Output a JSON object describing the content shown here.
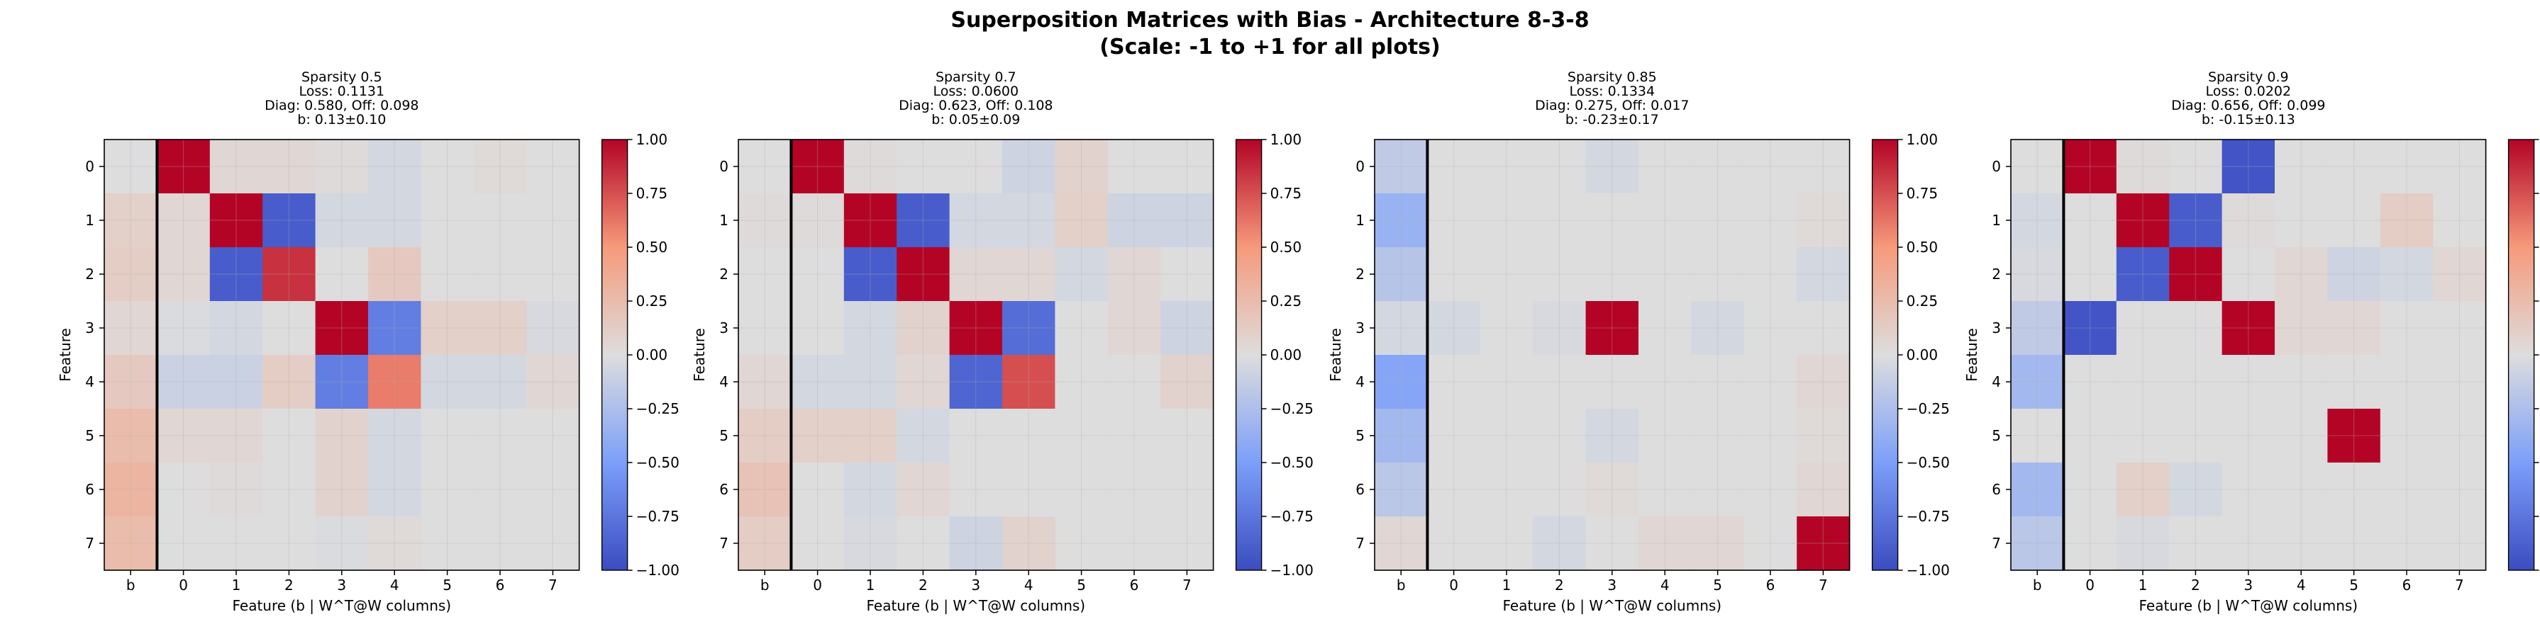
{
  "figure": {
    "title_line1": "Superposition Matrices with Bias - Architecture 8-3-8",
    "title_line2": "(Scale: -1 to +1 for all plots)"
  },
  "colormap": "coolwarm",
  "colors": {
    "min": "#3b4cc0",
    "mid": "#dddddd",
    "max": "#b40426",
    "divider": "#000000"
  },
  "chart_data": [
    {
      "type": "heatmap",
      "title": [
        "Sparsity 0.5",
        "Loss: 0.1131",
        "Diag: 0.580, Off: 0.098",
        "b: 0.13±0.10"
      ],
      "xlabel": "Feature (b | W^T@W columns)",
      "ylabel": "Feature",
      "x_tick_labels": [
        "b",
        "0",
        "1",
        "2",
        "3",
        "4",
        "5",
        "6",
        "7"
      ],
      "y_tick_labels": [
        "0",
        "1",
        "2",
        "3",
        "4",
        "5",
        "6",
        "7"
      ],
      "colorbar_ticks": [
        "1.00",
        "0.75",
        "0.50",
        "0.25",
        "0.00",
        "−0.25",
        "−0.50",
        "−0.75",
        "−1.00"
      ],
      "vmin": -1,
      "vmax": 1,
      "values": [
        [
          0.0,
          1.0,
          0.05,
          0.05,
          0.02,
          -0.05,
          0.0,
          0.03,
          0.0
        ],
        [
          0.1,
          0.05,
          1.0,
          -0.9,
          -0.05,
          -0.05,
          0.0,
          0.0,
          0.0
        ],
        [
          0.12,
          0.05,
          -0.9,
          0.85,
          0.0,
          0.15,
          0.0,
          0.0,
          0.0
        ],
        [
          0.05,
          -0.02,
          -0.05,
          0.0,
          1.0,
          -0.7,
          0.1,
          0.1,
          -0.03
        ],
        [
          0.15,
          -0.1,
          -0.1,
          0.12,
          -0.7,
          0.6,
          -0.05,
          -0.05,
          0.05
        ],
        [
          0.25,
          0.05,
          0.05,
          0.0,
          0.08,
          -0.05,
          0.0,
          0.0,
          0.0
        ],
        [
          0.3,
          0.0,
          0.02,
          0.0,
          0.08,
          -0.05,
          0.0,
          0.0,
          0.0
        ],
        [
          0.25,
          0.0,
          0.0,
          0.0,
          -0.02,
          0.03,
          0.0,
          0.0,
          0.0
        ]
      ]
    },
    {
      "type": "heatmap",
      "title": [
        "Sparsity 0.7",
        "Loss: 0.0600",
        "Diag: 0.623, Off: 0.108",
        "b: 0.05±0.09"
      ],
      "xlabel": "Feature (b | W^T@W columns)",
      "ylabel": "Feature",
      "x_tick_labels": [
        "b",
        "0",
        "1",
        "2",
        "3",
        "4",
        "5",
        "6",
        "7"
      ],
      "y_tick_labels": [
        "0",
        "1",
        "2",
        "3",
        "4",
        "5",
        "6",
        "7"
      ],
      "colorbar_ticks": [
        "1.00",
        "0.75",
        "0.50",
        "0.25",
        "0.00",
        "−0.25",
        "−0.50",
        "−0.75",
        "−1.00"
      ],
      "vmin": -1,
      "vmax": 1,
      "values": [
        [
          0.0,
          1.0,
          0.02,
          0.0,
          0.0,
          -0.08,
          0.08,
          0.0,
          0.0
        ],
        [
          0.02,
          0.02,
          1.0,
          -0.9,
          -0.05,
          -0.05,
          0.1,
          -0.08,
          -0.08
        ],
        [
          0.0,
          0.0,
          -0.9,
          1.0,
          0.05,
          0.05,
          -0.05,
          0.05,
          0.0
        ],
        [
          0.0,
          0.0,
          -0.05,
          0.08,
          1.0,
          -0.8,
          0.0,
          0.05,
          -0.08
        ],
        [
          0.05,
          -0.05,
          -0.05,
          0.05,
          -0.85,
          0.75,
          0.0,
          0.0,
          0.08
        ],
        [
          0.12,
          0.1,
          0.1,
          -0.05,
          0.0,
          0.0,
          0.0,
          0.0,
          0.0
        ],
        [
          0.2,
          0.0,
          -0.05,
          0.05,
          0.0,
          0.0,
          0.0,
          0.0,
          0.0
        ],
        [
          0.12,
          0.0,
          -0.03,
          0.0,
          -0.08,
          0.08,
          0.0,
          0.0,
          0.0
        ]
      ]
    },
    {
      "type": "heatmap",
      "title": [
        "Sparsity 0.85",
        "Loss: 0.1334",
        "Diag: 0.275, Off: 0.017",
        "b: -0.23±0.17"
      ],
      "xlabel": "Feature (b | W^T@W columns)",
      "ylabel": "Feature",
      "x_tick_labels": [
        "b",
        "0",
        "1",
        "2",
        "3",
        "4",
        "5",
        "6",
        "7"
      ],
      "y_tick_labels": [
        "0",
        "1",
        "2",
        "3",
        "4",
        "5",
        "6",
        "7"
      ],
      "colorbar_ticks": [
        "1.00",
        "0.75",
        "0.50",
        "0.25",
        "0.00",
        "−0.25",
        "−0.50",
        "−0.75",
        "−1.00"
      ],
      "vmin": -1,
      "vmax": 1,
      "values": [
        [
          -0.15,
          0.0,
          0.0,
          0.0,
          -0.05,
          0.0,
          0.0,
          0.0,
          0.0
        ],
        [
          -0.35,
          0.0,
          0.0,
          0.0,
          0.0,
          0.0,
          0.0,
          0.0,
          0.03
        ],
        [
          -0.2,
          0.0,
          0.0,
          0.0,
          0.0,
          0.0,
          0.0,
          0.0,
          -0.05
        ],
        [
          -0.05,
          -0.05,
          0.0,
          -0.03,
          1.0,
          0.0,
          -0.05,
          0.0,
          0.0
        ],
        [
          -0.45,
          0.0,
          0.0,
          0.0,
          0.0,
          0.0,
          0.0,
          0.0,
          0.05
        ],
        [
          -0.3,
          0.0,
          0.0,
          0.0,
          -0.05,
          0.0,
          0.0,
          0.0,
          0.03
        ],
        [
          -0.18,
          0.0,
          0.0,
          0.0,
          0.03,
          0.0,
          0.0,
          0.0,
          0.05
        ],
        [
          0.05,
          0.0,
          0.0,
          -0.05,
          0.0,
          0.05,
          0.05,
          0.0,
          1.0
        ]
      ]
    },
    {
      "type": "heatmap",
      "title": [
        "Sparsity 0.9",
        "Loss: 0.0202",
        "Diag: 0.656, Off: 0.099",
        "b: -0.15±0.13"
      ],
      "xlabel": "Feature (b | W^T@W columns)",
      "ylabel": "Feature",
      "x_tick_labels": [
        "b",
        "0",
        "1",
        "2",
        "3",
        "4",
        "5",
        "6",
        "7"
      ],
      "y_tick_labels": [
        "0",
        "1",
        "2",
        "3",
        "4",
        "5",
        "6",
        "7"
      ],
      "colorbar_ticks": [
        "1.00",
        "0.75",
        "0.50",
        "0.25",
        "0.00",
        "−0.25",
        "−0.50",
        "−0.75",
        "−1.00"
      ],
      "vmin": -1,
      "vmax": 1,
      "values": [
        [
          0.0,
          1.0,
          0.02,
          0.0,
          -0.95,
          0.0,
          0.0,
          0.0,
          0.0
        ],
        [
          -0.05,
          0.0,
          1.0,
          -0.9,
          0.02,
          0.0,
          0.0,
          0.12,
          0.0
        ],
        [
          -0.03,
          0.0,
          -0.9,
          1.0,
          0.0,
          0.05,
          -0.08,
          -0.05,
          0.05
        ],
        [
          -0.15,
          -0.95,
          0.0,
          0.0,
          1.0,
          0.05,
          0.05,
          0.0,
          0.0
        ],
        [
          -0.3,
          0.0,
          0.0,
          0.0,
          0.0,
          0.0,
          0.0,
          0.0,
          0.0
        ],
        [
          0.0,
          0.0,
          0.0,
          0.0,
          0.0,
          0.0,
          1.0,
          0.0,
          0.0
        ],
        [
          -0.3,
          0.0,
          0.1,
          -0.05,
          0.0,
          0.0,
          0.0,
          0.0,
          0.0
        ],
        [
          -0.18,
          0.0,
          -0.03,
          0.0,
          0.0,
          0.0,
          0.0,
          0.0,
          0.0
        ]
      ]
    }
  ]
}
